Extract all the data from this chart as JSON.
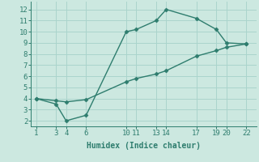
{
  "x_upper": [
    1,
    3,
    4,
    6,
    10,
    11,
    13,
    14,
    17,
    19,
    20,
    22
  ],
  "y_upper": [
    4.0,
    3.5,
    2.0,
    2.5,
    10.0,
    10.2,
    11.0,
    12.0,
    11.2,
    10.2,
    9.0,
    8.9
  ],
  "x_lower": [
    1,
    3,
    4,
    6,
    10,
    11,
    13,
    14,
    17,
    19,
    20,
    22
  ],
  "y_lower": [
    4.0,
    3.8,
    3.7,
    3.9,
    5.5,
    5.8,
    6.2,
    6.5,
    7.8,
    8.3,
    8.6,
    8.9
  ],
  "line_color": "#2e7d6e",
  "marker_color": "#2e7d6e",
  "bg_color": "#cce8e0",
  "grid_color": "#aad4cc",
  "xlabel": "Humidex (Indice chaleur)",
  "xticks": [
    1,
    3,
    4,
    6,
    10,
    11,
    13,
    14,
    17,
    19,
    20,
    22
  ],
  "yticks": [
    2,
    3,
    4,
    5,
    6,
    7,
    8,
    9,
    10,
    11,
    12
  ],
  "xlim": [
    0.5,
    23.0
  ],
  "ylim": [
    1.5,
    12.7
  ],
  "xlabel_fontsize": 7,
  "tick_fontsize": 6.5,
  "marker_size": 2.5,
  "line_width": 1.0
}
